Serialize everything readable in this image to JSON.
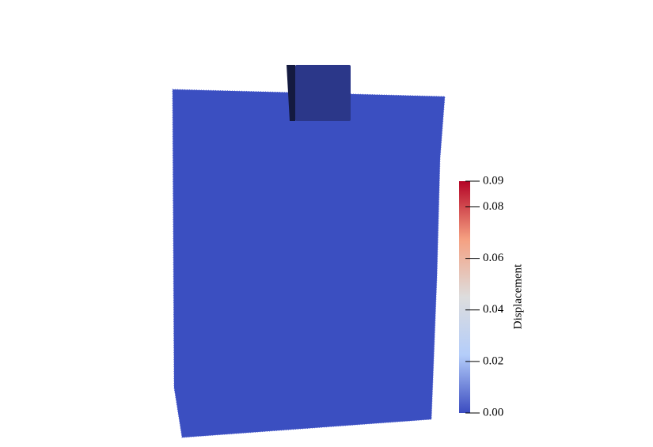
{
  "colorbar": {
    "title": "Displacement",
    "range": [
      0,
      0.09
    ],
    "ticks": [
      {
        "value": 0,
        "label": "0.00"
      },
      0.02,
      0.04,
      0.06,
      0.08,
      0.09
    ],
    "colormap": [
      "#3b4cc0",
      "#b4cdfa",
      "#dddddd",
      "#f5a081",
      "#b40426"
    ]
  }
}
